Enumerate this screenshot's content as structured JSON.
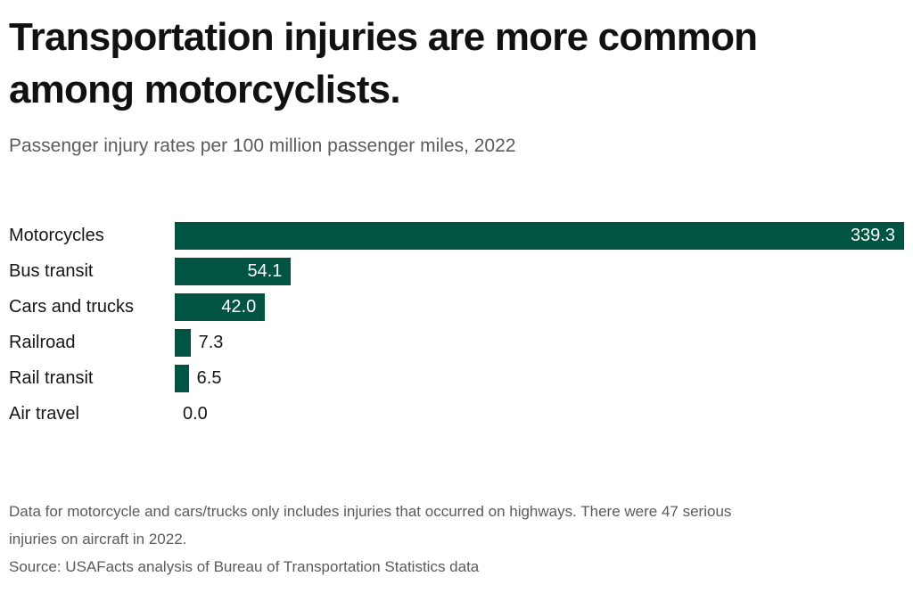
{
  "header": {
    "title_lines": [
      "Transportation injuries are more common",
      "among motorcyclists."
    ],
    "subtitle": "Passenger injury rates per 100 million passenger miles, 2022"
  },
  "chart_data": {
    "type": "bar",
    "orientation": "horizontal",
    "title": "Transportation injuries are more common among motorcyclists.",
    "subtitle": "Passenger injury rates per 100 million passenger miles, 2022",
    "categories": [
      "Motorcycles",
      "Bus transit",
      "Cars and trucks",
      "Railroad",
      "Rail transit",
      "Air travel"
    ],
    "values": [
      339.3,
      54.1,
      42.0,
      7.3,
      6.5,
      0.0
    ],
    "value_labels": [
      "339.3",
      "54.1",
      "42.0",
      "7.3",
      "6.5",
      "0.0"
    ],
    "value_label_placement": [
      "inside",
      "inside",
      "inside",
      "outside",
      "outside",
      "outside"
    ],
    "xlabel": "",
    "ylabel": "",
    "xlim": [
      0,
      339.3
    ],
    "grid": false,
    "legend": false,
    "axis_ticks": false,
    "bar_color": "#005441"
  },
  "footer": {
    "note_lines": [
      "Data for motorcycle and cars/trucks only includes injuries that occurred on highways. There were 47 serious",
      "injuries on aircraft in 2022."
    ],
    "source": "Source: USAFacts analysis of Bureau of Transportation Statistics data"
  },
  "colors": {
    "bar": "#005441",
    "title_text": "#111111",
    "subtitle_text": "#5b5b5b",
    "category_text": "#161616",
    "value_inside_text": "#ffffff",
    "value_outside_text": "#161616",
    "footer_text": "#5b5b5b",
    "background": "#ffffff"
  }
}
